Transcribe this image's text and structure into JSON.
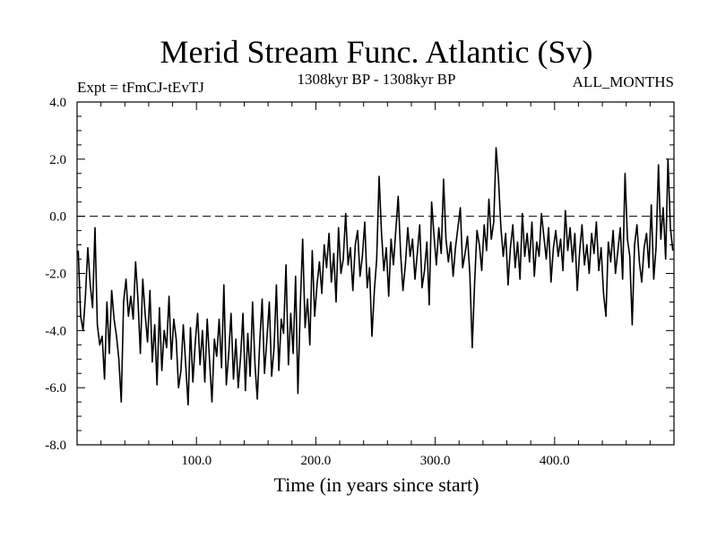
{
  "chart_data": {
    "type": "line",
    "title": "Merid Stream Func. Atlantic (Sv)",
    "subtitle": "1308kyr BP - 1308kyr BP",
    "left_label": "Expt = tFmCJ-tEvTJ",
    "right_label": "ALL_MONTHS",
    "xlabel": "Time (in years since start)",
    "ylabel": "",
    "xlim": [
      0,
      500
    ],
    "ylim": [
      -8,
      4
    ],
    "x_ticks": [
      100,
      200,
      300,
      400
    ],
    "x_tick_labels": [
      "100.0",
      "200.0",
      "300.0",
      "400.0"
    ],
    "y_ticks": [
      4,
      2,
      0,
      -2,
      -4,
      -6,
      -8
    ],
    "y_tick_labels": [
      "4.0",
      "2.0",
      "0.0",
      "-2.0",
      "-4.0",
      "-6.0",
      "-8.0"
    ],
    "reference_line": 0,
    "series": [
      {
        "name": "Merid Stream Func. Atlantic",
        "x_start": 1,
        "x_step": 2,
        "values": [
          -1.2,
          -3.5,
          -4.0,
          -2.8,
          -1.1,
          -2.4,
          -3.2,
          -0.4,
          -3.8,
          -4.5,
          -4.2,
          -5.7,
          -3.0,
          -4.8,
          -2.6,
          -3.6,
          -4.2,
          -5.0,
          -6.5,
          -3.0,
          -2.2,
          -3.5,
          -2.8,
          -3.6,
          -1.6,
          -2.9,
          -4.8,
          -2.2,
          -3.4,
          -4.4,
          -2.6,
          -5.1,
          -3.8,
          -5.9,
          -3.2,
          -5.4,
          -4.0,
          -4.6,
          -2.8,
          -5.0,
          -3.6,
          -4.3,
          -6.0,
          -5.4,
          -3.8,
          -5.2,
          -6.6,
          -3.9,
          -5.8,
          -4.4,
          -3.4,
          -5.2,
          -4.0,
          -5.8,
          -3.6,
          -5.1,
          -6.5,
          -4.3,
          -4.9,
          -3.6,
          -5.3,
          -2.4,
          -5.9,
          -4.8,
          -3.4,
          -5.7,
          -4.3,
          -6.0,
          -4.9,
          -3.4,
          -6.1,
          -4.1,
          -5.6,
          -3.0,
          -5.2,
          -6.4,
          -4.4,
          -2.9,
          -5.5,
          -4.3,
          -3.0,
          -5.6,
          -4.6,
          -2.4,
          -5.4,
          -3.6,
          -4.1,
          -1.7,
          -5.2,
          -3.4,
          -4.8,
          -2.1,
          -6.2,
          -3.1,
          -0.8,
          -3.9,
          -2.9,
          -4.5,
          -1.2,
          -3.5,
          -2.4,
          -1.6,
          -2.7,
          -1.0,
          -1.8,
          -0.6,
          -2.3,
          -1.3,
          -3.0,
          -0.4,
          -2.0,
          -1.5,
          0.1,
          -1.7,
          -1.1,
          -2.6,
          -1.0,
          -0.5,
          -2.1,
          -1.4,
          -0.2,
          -2.5,
          -1.8,
          -4.2,
          -2.6,
          -1.5,
          1.4,
          -0.6,
          -1.9,
          -1.1,
          -2.8,
          -0.8,
          -1.7,
          -0.5,
          0.7,
          -1.3,
          -2.6,
          -1.7,
          -0.4,
          -1.4,
          -0.8,
          -2.2,
          -1.3,
          -0.3,
          -2.5,
          -1.9,
          -0.9,
          -3.1,
          0.5,
          -0.7,
          -1.7,
          -0.4,
          -1.3,
          1.3,
          -0.8,
          -1.6,
          -0.9,
          -2.1,
          -1.1,
          -0.4,
          0.3,
          -1.8,
          -1.3,
          -0.7,
          -2.0,
          -4.6,
          -2.3,
          -0.5,
          -1.0,
          -1.9,
          -0.3,
          -1.2,
          0.6,
          -0.8,
          -0.2,
          2.4,
          1.3,
          -0.4,
          -1.4,
          -0.6,
          -2.4,
          -1.1,
          -0.3,
          -1.8,
          -0.9,
          -2.2,
          0.1,
          -1.4,
          -0.6,
          -1.6,
          -0.2,
          -2.1,
          -0.9,
          -1.4,
          0.1,
          -0.7,
          -1.5,
          -0.4,
          -2.3,
          -1.1,
          -0.5,
          -1.4,
          -0.8,
          -1.9,
          0.2,
          -1.2,
          -0.4,
          -1.6,
          -0.6,
          -2.6,
          -1.2,
          -0.3,
          -1.7,
          -1.0,
          -2.0,
          -0.6,
          -1.3,
          -0.2,
          -1.9,
          -1.1,
          -2.7,
          -3.5,
          -0.9,
          -1.6,
          -0.5,
          -2.0,
          -1.2,
          -0.4,
          -2.2,
          1.5,
          -0.8,
          -1.4,
          -3.8,
          -1.0,
          -0.3,
          -1.6,
          -2.3,
          -1.1,
          -0.6,
          -1.8,
          0.4,
          -2.2,
          -1.1,
          1.8,
          -0.8,
          0.3,
          -1.5,
          2.0,
          -0.4,
          -1.2
        ]
      }
    ]
  }
}
